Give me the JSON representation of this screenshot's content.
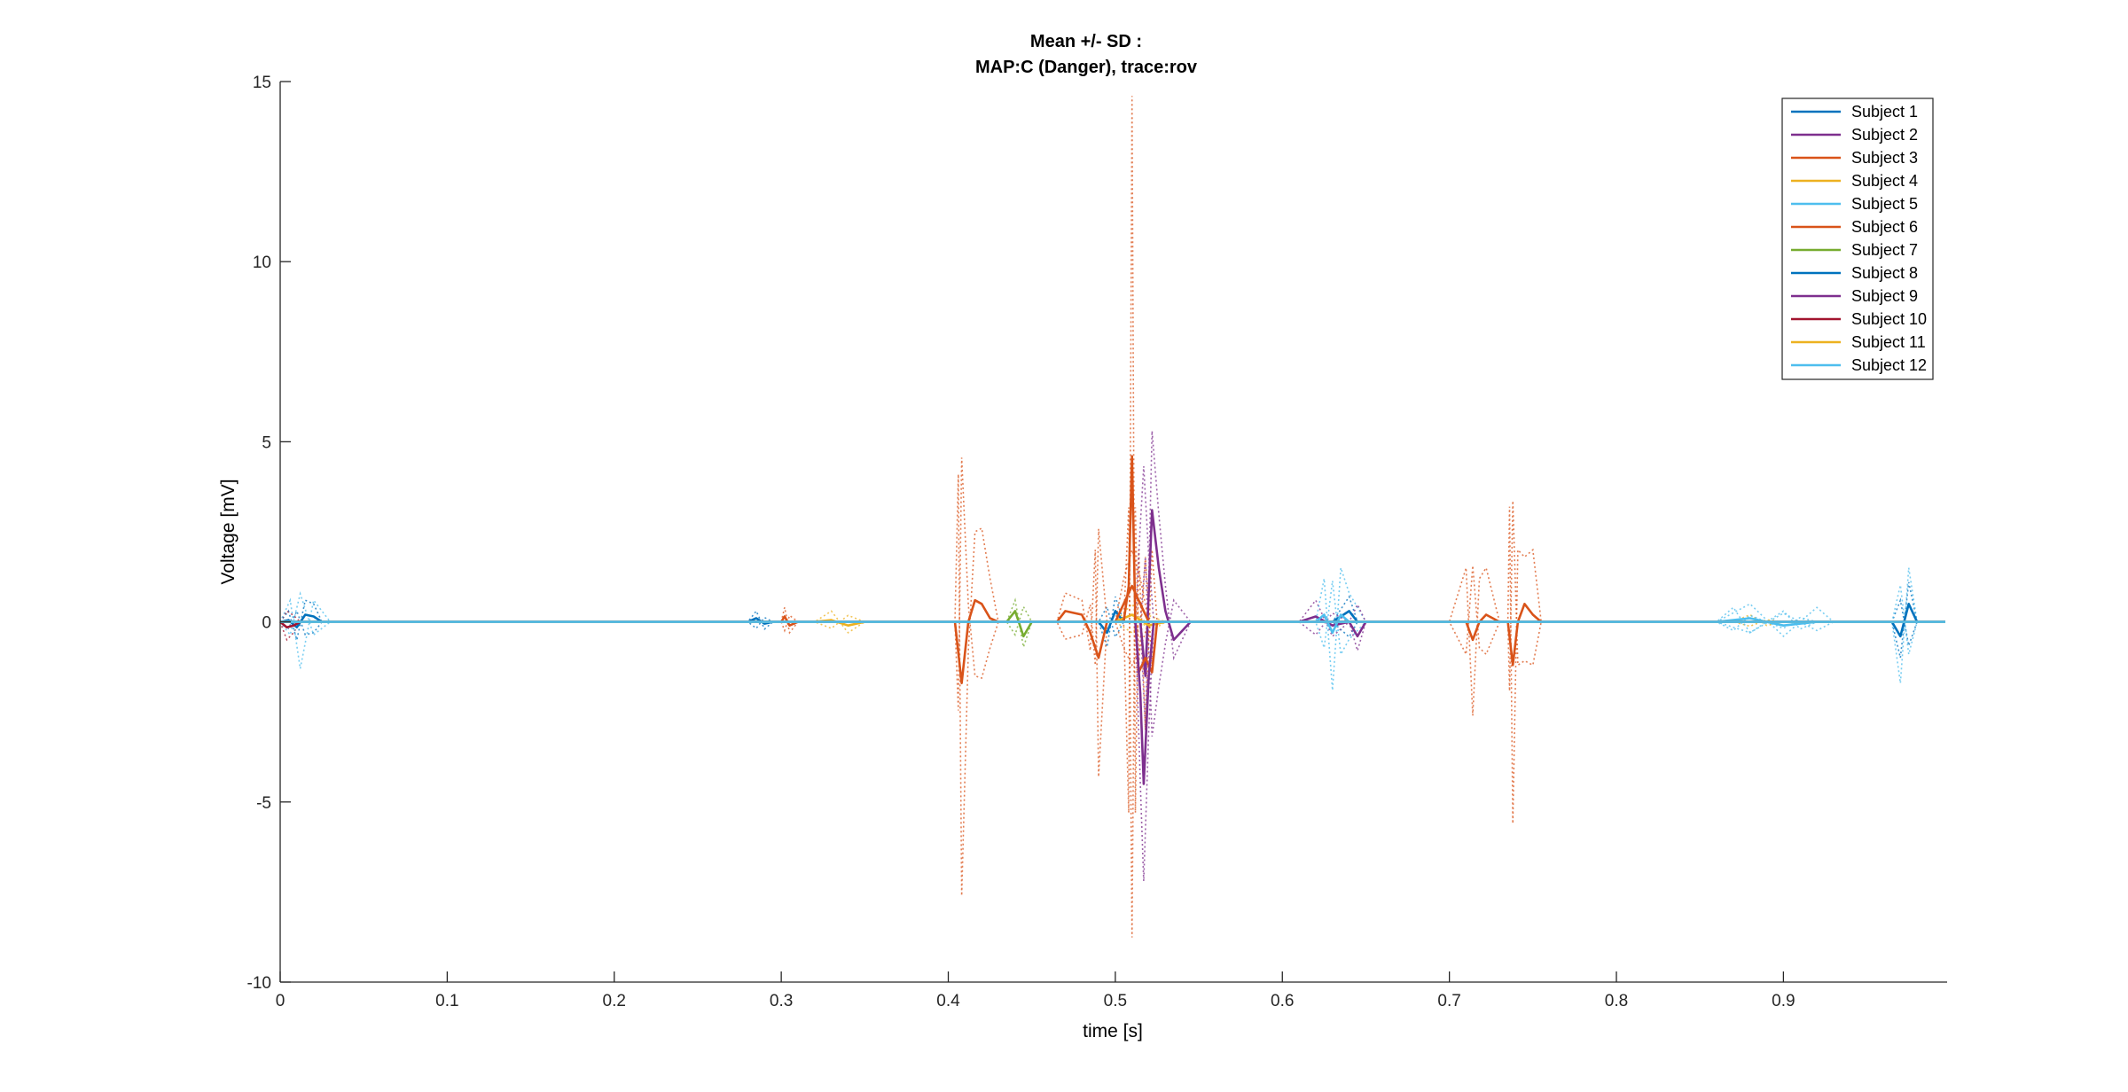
{
  "chart_data": {
    "type": "line",
    "title": [
      "Mean +/- SD :",
      "MAP:C (Danger), trace:rov"
    ],
    "xlabel": "time [s]",
    "ylabel": "Voltage [mV]",
    "xlim": [
      0,
      0.998
    ],
    "ylim": [
      -10,
      15
    ],
    "xticks": [
      0,
      0.1,
      0.2,
      0.3,
      0.4,
      0.5,
      0.6,
      0.7,
      0.8,
      0.9
    ],
    "xtick_labels": [
      "0",
      "0.1",
      "0.2",
      "0.3",
      "0.4",
      "0.5",
      "0.6",
      "0.7",
      "0.8",
      "0.9"
    ],
    "yticks": [
      -10,
      -5,
      0,
      5,
      10,
      15
    ],
    "ytick_labels": [
      "-10",
      "-5",
      "0",
      "5",
      "10",
      "15"
    ],
    "grid": false,
    "legend_position": "top-right",
    "sd_style": "dotted",
    "series": [
      {
        "name": "Subject 1",
        "color": "#0072BD",
        "mean": [
          [
            0,
            0
          ],
          [
            0.005,
            0.05
          ],
          [
            0.01,
            -0.15
          ],
          [
            0.015,
            0.2
          ],
          [
            0.02,
            0.15
          ],
          [
            0.025,
            0
          ],
          [
            0.3,
            0
          ],
          [
            0.49,
            0
          ],
          [
            0.495,
            -0.3
          ],
          [
            0.5,
            0.3
          ],
          [
            0.505,
            0
          ],
          [
            0.63,
            0
          ],
          [
            0.64,
            0.3
          ],
          [
            0.645,
            0
          ],
          [
            0.965,
            0
          ],
          [
            0.97,
            -0.4
          ],
          [
            0.975,
            0.5
          ],
          [
            0.98,
            0
          ],
          [
            0.998,
            0
          ]
        ],
        "sd": [
          [
            0,
            0
          ],
          [
            0.005,
            0.3
          ],
          [
            0.01,
            -0.5
          ],
          [
            0.015,
            0.6
          ],
          [
            0.02,
            0.5
          ],
          [
            0.025,
            0
          ],
          [
            0.3,
            0
          ],
          [
            0.49,
            0
          ],
          [
            0.495,
            -0.7
          ],
          [
            0.5,
            0.7
          ],
          [
            0.505,
            0
          ],
          [
            0.63,
            0
          ],
          [
            0.64,
            0.7
          ],
          [
            0.645,
            0
          ],
          [
            0.965,
            0
          ],
          [
            0.97,
            -1.0
          ],
          [
            0.975,
            1.1
          ],
          [
            0.98,
            0
          ],
          [
            0.998,
            0
          ]
        ]
      },
      {
        "name": "Subject 2",
        "color": "#7E2F8E",
        "mean": [
          [
            0,
            0
          ],
          [
            0.515,
            0
          ],
          [
            0.518,
            -1.5
          ],
          [
            0.522,
            3.1
          ],
          [
            0.526,
            1.5
          ],
          [
            0.53,
            0.3
          ],
          [
            0.535,
            -0.5
          ],
          [
            0.545,
            0
          ],
          [
            0.61,
            0
          ],
          [
            0.62,
            0.15
          ],
          [
            0.63,
            -0.1
          ],
          [
            0.64,
            0
          ],
          [
            0.998,
            0
          ]
        ],
        "sd": [
          [
            0,
            0
          ],
          [
            0.515,
            0
          ],
          [
            0.518,
            -3
          ],
          [
            0.522,
            5.3
          ],
          [
            0.526,
            3
          ],
          [
            0.53,
            1
          ],
          [
            0.535,
            -1
          ],
          [
            0.545,
            0
          ],
          [
            0.61,
            0
          ],
          [
            0.62,
            0.6
          ],
          [
            0.63,
            -0.4
          ],
          [
            0.64,
            0
          ],
          [
            0.998,
            0
          ]
        ]
      },
      {
        "name": "Subject 3",
        "color": "#D95319",
        "mean": [
          [
            0,
            0
          ],
          [
            0.3,
            0
          ],
          [
            0.302,
            0.15
          ],
          [
            0.305,
            -0.1
          ],
          [
            0.31,
            0
          ],
          [
            0.5,
            0
          ],
          [
            0.505,
            0.5
          ],
          [
            0.51,
            1
          ],
          [
            0.515,
            0.5
          ],
          [
            0.52,
            0
          ],
          [
            0.998,
            0
          ]
        ],
        "sd": [
          [
            0,
            0
          ],
          [
            0.3,
            0
          ],
          [
            0.302,
            0.4
          ],
          [
            0.305,
            -0.3
          ],
          [
            0.31,
            0
          ],
          [
            0.5,
            0
          ],
          [
            0.505,
            1.2
          ],
          [
            0.51,
            2
          ],
          [
            0.515,
            1.2
          ],
          [
            0.52,
            0
          ],
          [
            0.998,
            0
          ]
        ]
      },
      {
        "name": "Subject 4",
        "color": "#EDB120",
        "mean": [
          [
            0,
            0
          ],
          [
            0.32,
            0
          ],
          [
            0.33,
            0.05
          ],
          [
            0.34,
            -0.1
          ],
          [
            0.35,
            0
          ],
          [
            0.5,
            0
          ],
          [
            0.51,
            0.2
          ],
          [
            0.52,
            -0.1
          ],
          [
            0.53,
            0
          ],
          [
            0.998,
            0
          ]
        ],
        "sd": [
          [
            0,
            0
          ],
          [
            0.32,
            0
          ],
          [
            0.33,
            0.3
          ],
          [
            0.34,
            -0.3
          ],
          [
            0.35,
            0
          ],
          [
            0.5,
            0
          ],
          [
            0.51,
            0.5
          ],
          [
            0.52,
            -0.3
          ],
          [
            0.53,
            0
          ],
          [
            0.998,
            0
          ]
        ]
      },
      {
        "name": "Subject 5",
        "color": "#4DBEEE",
        "mean": [
          [
            0,
            0
          ],
          [
            0.62,
            0
          ],
          [
            0.625,
            0.2
          ],
          [
            0.63,
            -0.3
          ],
          [
            0.635,
            0.2
          ],
          [
            0.64,
            0
          ],
          [
            0.86,
            0
          ],
          [
            0.88,
            0.1
          ],
          [
            0.9,
            -0.1
          ],
          [
            0.92,
            0
          ],
          [
            0.998,
            0
          ]
        ],
        "sd": [
          [
            0,
            0
          ],
          [
            0.62,
            0
          ],
          [
            0.625,
            1.2
          ],
          [
            0.63,
            -1.9
          ],
          [
            0.635,
            1.5
          ],
          [
            0.64,
            0.8
          ],
          [
            0.65,
            0
          ],
          [
            0.86,
            0
          ],
          [
            0.88,
            0.5
          ],
          [
            0.9,
            -0.4
          ],
          [
            0.92,
            0.4
          ],
          [
            0.93,
            0
          ],
          [
            0.998,
            0
          ]
        ]
      },
      {
        "name": "Subject 6",
        "color": "#D95319",
        "mean": [
          [
            0,
            0
          ],
          [
            0.404,
            0
          ],
          [
            0.408,
            -1.7
          ],
          [
            0.412,
            0
          ],
          [
            0.416,
            0.6
          ],
          [
            0.42,
            0.5
          ],
          [
            0.425,
            0.1
          ],
          [
            0.43,
            0
          ],
          [
            0.465,
            0
          ],
          [
            0.47,
            0.3
          ],
          [
            0.48,
            0.2
          ],
          [
            0.485,
            -0.3
          ],
          [
            0.49,
            -1.0
          ],
          [
            0.495,
            0
          ],
          [
            0.505,
            0
          ],
          [
            0.508,
            1
          ],
          [
            0.51,
            4.6
          ],
          [
            0.512,
            0
          ],
          [
            0.514,
            -1.4
          ],
          [
            0.518,
            -1
          ],
          [
            0.522,
            -1.4
          ],
          [
            0.525,
            0
          ],
          [
            0.7,
            0
          ],
          [
            0.71,
            0
          ],
          [
            0.714,
            -0.5
          ],
          [
            0.718,
            0
          ],
          [
            0.722,
            0.2
          ],
          [
            0.73,
            0
          ],
          [
            0.735,
            0
          ],
          [
            0.738,
            -1.2
          ],
          [
            0.741,
            0
          ],
          [
            0.745,
            0.5
          ],
          [
            0.75,
            0.2
          ],
          [
            0.755,
            0
          ],
          [
            0.79,
            0
          ],
          [
            0.998,
            0
          ]
        ],
        "sd": [
          [
            0,
            0
          ],
          [
            0.404,
            0
          ],
          [
            0.406,
            4.1
          ],
          [
            0.408,
            -7.6
          ],
          [
            0.412,
            -0.8
          ],
          [
            0.416,
            2.5
          ],
          [
            0.42,
            2.6
          ],
          [
            0.425,
            1.2
          ],
          [
            0.43,
            0
          ],
          [
            0.465,
            0
          ],
          [
            0.47,
            0.8
          ],
          [
            0.48,
            0.6
          ],
          [
            0.485,
            -0.8
          ],
          [
            0.488,
            2
          ],
          [
            0.49,
            -4.3
          ],
          [
            0.495,
            0
          ],
          [
            0.505,
            0
          ],
          [
            0.508,
            -5.3
          ],
          [
            0.51,
            14.6
          ],
          [
            0.512,
            -5.3
          ],
          [
            0.514,
            2
          ],
          [
            0.518,
            -3
          ],
          [
            0.522,
            2
          ],
          [
            0.525,
            0
          ],
          [
            0.7,
            0
          ],
          [
            0.71,
            1.5
          ],
          [
            0.714,
            -2.6
          ],
          [
            0.718,
            1.2
          ],
          [
            0.722,
            1.5
          ],
          [
            0.73,
            0
          ],
          [
            0.735,
            0
          ],
          [
            0.736,
            3.2
          ],
          [
            0.738,
            -5.6
          ],
          [
            0.741,
            2
          ],
          [
            0.745,
            1.8
          ],
          [
            0.75,
            2
          ],
          [
            0.755,
            0
          ],
          [
            0.998,
            0
          ]
        ]
      },
      {
        "name": "Subject 7",
        "color": "#77AC30",
        "mean": [
          [
            0,
            0
          ],
          [
            0.435,
            0
          ],
          [
            0.44,
            0.3
          ],
          [
            0.445,
            -0.4
          ],
          [
            0.45,
            0
          ],
          [
            0.998,
            0
          ]
        ],
        "sd": [
          [
            0,
            0
          ],
          [
            0.435,
            0
          ],
          [
            0.44,
            0.6
          ],
          [
            0.445,
            -0.7
          ],
          [
            0.45,
            0
          ],
          [
            0.998,
            0
          ]
        ]
      },
      {
        "name": "Subject 8",
        "color": "#0072BD",
        "mean": [
          [
            0,
            0
          ],
          [
            0.28,
            0
          ],
          [
            0.285,
            0.1
          ],
          [
            0.29,
            -0.05
          ],
          [
            0.295,
            0
          ],
          [
            0.998,
            0
          ]
        ],
        "sd": [
          [
            0,
            0
          ],
          [
            0.28,
            0
          ],
          [
            0.285,
            0.3
          ],
          [
            0.29,
            -0.2
          ],
          [
            0.295,
            0
          ],
          [
            0.998,
            0
          ]
        ]
      },
      {
        "name": "Subject 9",
        "color": "#7E2F8E",
        "mean": [
          [
            0,
            0
          ],
          [
            0.512,
            0
          ],
          [
            0.515,
            -2
          ],
          [
            0.517,
            -4.5
          ],
          [
            0.52,
            -1.5
          ],
          [
            0.523,
            0
          ],
          [
            0.64,
            0
          ],
          [
            0.645,
            -0.4
          ],
          [
            0.65,
            0
          ],
          [
            0.998,
            0
          ]
        ],
        "sd": [
          [
            0,
            0
          ],
          [
            0.512,
            0
          ],
          [
            0.515,
            -4.5
          ],
          [
            0.517,
            -7.2
          ],
          [
            0.52,
            -3
          ],
          [
            0.523,
            0
          ],
          [
            0.64,
            0
          ],
          [
            0.645,
            -0.8
          ],
          [
            0.65,
            0
          ],
          [
            0.998,
            0
          ]
        ]
      },
      {
        "name": "Subject 10",
        "color": "#A2142F",
        "mean": [
          [
            0,
            0
          ],
          [
            0.004,
            -0.15
          ],
          [
            0.008,
            -0.1
          ],
          [
            0.012,
            0
          ],
          [
            0.998,
            0
          ]
        ],
        "sd": [
          [
            0,
            0
          ],
          [
            0.004,
            -0.5
          ],
          [
            0.008,
            -0.3
          ],
          [
            0.012,
            0
          ],
          [
            0.998,
            0
          ]
        ]
      },
      {
        "name": "Subject 11",
        "color": "#EDB120",
        "mean": [
          [
            0,
            0
          ],
          [
            0.998,
            0
          ]
        ],
        "sd": [
          [
            0,
            0
          ],
          [
            0.87,
            0
          ],
          [
            0.88,
            0.2
          ],
          [
            0.89,
            -0.1
          ],
          [
            0.9,
            0
          ],
          [
            0.998,
            0
          ]
        ]
      },
      {
        "name": "Subject 12",
        "color": "#4DBEEE",
        "mean": [
          [
            0,
            0
          ],
          [
            0.998,
            0
          ]
        ],
        "sd": [
          [
            0,
            0
          ],
          [
            0.006,
            0.6
          ],
          [
            0.012,
            -1.3
          ],
          [
            0.02,
            0.6
          ],
          [
            0.03,
            0
          ],
          [
            0.86,
            0
          ],
          [
            0.87,
            0.4
          ],
          [
            0.88,
            -0.3
          ],
          [
            0.9,
            0.3
          ],
          [
            0.91,
            -0.2
          ],
          [
            0.92,
            0
          ],
          [
            0.965,
            0
          ],
          [
            0.97,
            -1.7
          ],
          [
            0.975,
            1.5
          ],
          [
            0.98,
            0
          ],
          [
            0.998,
            0
          ]
        ]
      }
    ]
  }
}
